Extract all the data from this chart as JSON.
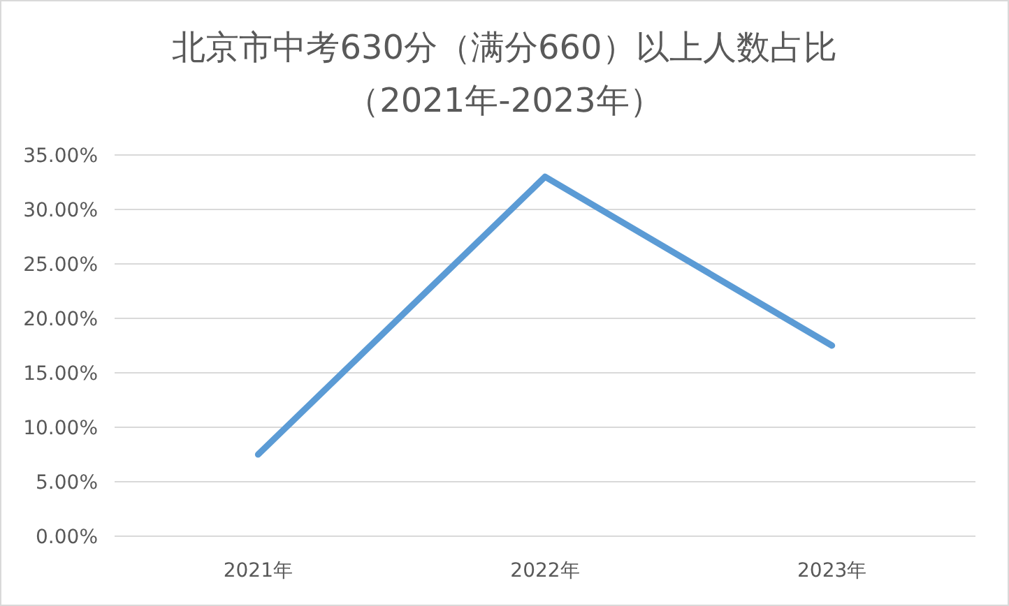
{
  "chart_data": {
    "type": "line",
    "title": "北京市中考630分（满分660）以上人数占比",
    "subtitle": "（2021年-2023年）",
    "categories": [
      "2021年",
      "2022年",
      "2023年"
    ],
    "series": [
      {
        "color": "#5b9bd5",
        "values": [
          7.5,
          33,
          17.5
        ]
      }
    ],
    "ylim": [
      0,
      35
    ],
    "yticks": [
      {
        "value": 0,
        "label": "0.00%"
      },
      {
        "value": 5,
        "label": "5.00%"
      },
      {
        "value": 10,
        "label": "10.00%"
      },
      {
        "value": 15,
        "label": "15.00%"
      },
      {
        "value": 20,
        "label": "20.00%"
      },
      {
        "value": 25,
        "label": "25.00%"
      },
      {
        "value": 30,
        "label": "30.00%"
      },
      {
        "value": 35,
        "label": "35.00%"
      }
    ],
    "grid": "y",
    "marker": "none",
    "line_style": "solid"
  }
}
